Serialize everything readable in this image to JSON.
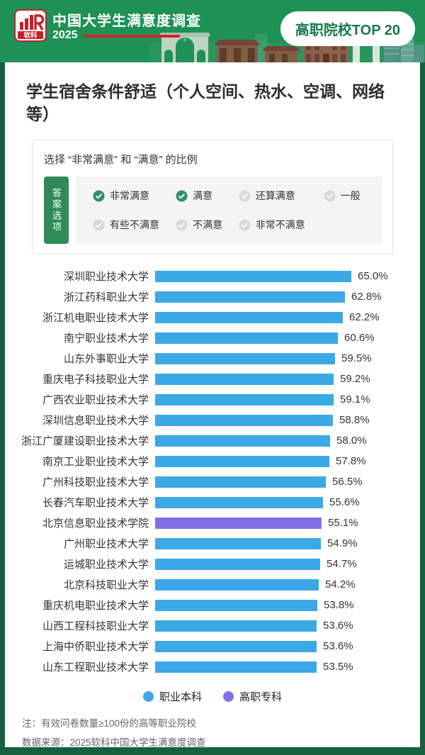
{
  "header": {
    "logo_brand": "软科",
    "logo_icon": "ruanke-bars-logo",
    "title": "中国大学生满意度调查",
    "year": "2025",
    "badge": "高职院校TOP 20"
  },
  "main": {
    "title": "学生宿舍条件舒适（个人空间、热水、空调、网络等）",
    "question_box": {
      "subtitle": "选择 “非常满意” 和 “满意” 的比例",
      "tab_label": "答案选项",
      "options": [
        {
          "label": "非常满意",
          "checked": true
        },
        {
          "label": "满意",
          "checked": true
        },
        {
          "label": "还算满意",
          "checked": false
        },
        {
          "label": "一般",
          "checked": false
        },
        {
          "label": "有些不满意",
          "checked": false
        },
        {
          "label": "不满意",
          "checked": false
        },
        {
          "label": "非常不满意",
          "checked": false
        }
      ]
    }
  },
  "chart_data": {
    "type": "bar",
    "orientation": "horizontal",
    "value_format": "percent",
    "xlim": [
      0,
      65
    ],
    "categories": [
      "深圳职业技术大学",
      "浙江药科职业大学",
      "浙江机电职业技术大学",
      "南宁职业技术大学",
      "山东外事职业大学",
      "重庆电子科技职业大学",
      "广西农业职业技术大学",
      "深圳信息职业技术大学",
      "浙江广厦建设职业技术大学",
      "南京工业职业技术大学",
      "广州科技职业技术大学",
      "长春汽车职业技术大学",
      "北京信息职业技术学院",
      "广州职业技术大学",
      "运城职业技术大学",
      "北京科技职业大学",
      "重庆机电职业技术大学",
      "山西工程科技职业大学",
      "上海中侨职业技术大学",
      "山东工程职业技术大学"
    ],
    "values": [
      65.0,
      62.8,
      62.2,
      60.6,
      59.5,
      59.2,
      59.1,
      58.8,
      58.0,
      57.8,
      56.5,
      55.6,
      55.1,
      54.9,
      54.7,
      54.2,
      53.8,
      53.6,
      53.6,
      53.5
    ],
    "groups": [
      "职业本科",
      "职业本科",
      "职业本科",
      "职业本科",
      "职业本科",
      "职业本科",
      "职业本科",
      "职业本科",
      "职业本科",
      "职业本科",
      "职业本科",
      "职业本科",
      "高职专科",
      "职业本科",
      "职业本科",
      "职业本科",
      "职业本科",
      "职业本科",
      "职业本科",
      "职业本科"
    ],
    "colors": {
      "职业本科": "#3AA9E6",
      "高职专科": "#8470E6"
    },
    "legend": [
      {
        "label": "职业本科",
        "color": "#3AA9E6"
      },
      {
        "label": "高职专科",
        "color": "#8470E6"
      }
    ]
  },
  "footer": {
    "note": "注：有效问卷数量≥100份的高等职业院校",
    "source": "数据来源：2025软科中国大学生满意度调查"
  },
  "colors": {
    "header_green": "#1E9156",
    "frame_green": "#14603F",
    "accent_red": "#D8232A",
    "tab_green": "#2E8B57",
    "check_green": "#2E9164",
    "check_gray": "#D9D9D9",
    "badge_text_green": "#17794B"
  }
}
